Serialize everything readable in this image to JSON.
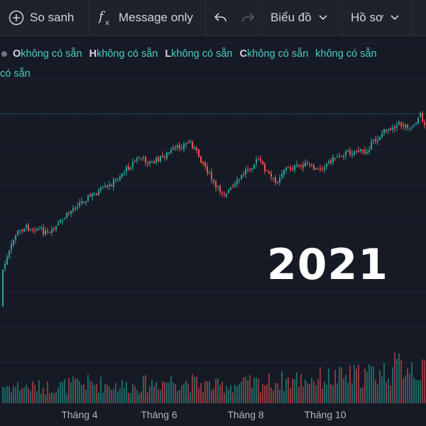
{
  "toolbar": {
    "compare_label": "So sanh",
    "formula_label": "Message only",
    "chart_type_label": "Biểu đồ",
    "profile_label": "Hồ sơ"
  },
  "ohlc": {
    "o_key": "O",
    "o_value": "không có sẵn",
    "h_key": "H",
    "h_value": "không có sẵn",
    "l_key": "L",
    "l_value": "không có sẵn",
    "c_key": "C",
    "c_value": "không có sẵn",
    "change_value": "không có sẵn",
    "wrap_value": "có sẵn"
  },
  "overlay": {
    "year": "2021"
  },
  "x_axis": {
    "labels": [
      "Tháng 4",
      "Tháng 6",
      "Tháng 8",
      "Tháng 10"
    ]
  },
  "colors": {
    "up": "#26a69a",
    "down": "#ef5350",
    "background": "#161a25",
    "price_line": "#26a69a"
  },
  "chart_data": {
    "type": "candlestick",
    "period": "2021",
    "price_anchors": [
      [
        0,
        380
      ],
      [
        6,
        330
      ],
      [
        10,
        320
      ],
      [
        16,
        322
      ],
      [
        22,
        330
      ],
      [
        28,
        310
      ],
      [
        34,
        290
      ],
      [
        40,
        278
      ],
      [
        46,
        268
      ],
      [
        50,
        262
      ],
      [
        58,
        238
      ],
      [
        64,
        222
      ],
      [
        70,
        230
      ],
      [
        78,
        215
      ],
      [
        84,
        205
      ],
      [
        88,
        200
      ],
      [
        92,
        220
      ],
      [
        96,
        240
      ],
      [
        100,
        265
      ],
      [
        104,
        272
      ],
      [
        108,
        265
      ],
      [
        114,
        240
      ],
      [
        120,
        225
      ],
      [
        124,
        242
      ],
      [
        128,
        258
      ],
      [
        132,
        238
      ],
      [
        138,
        235
      ],
      [
        142,
        232
      ],
      [
        148,
        240
      ],
      [
        152,
        230
      ],
      [
        158,
        218
      ],
      [
        166,
        212
      ],
      [
        170,
        215
      ],
      [
        174,
        200
      ],
      [
        180,
        182
      ],
      [
        186,
        175
      ],
      [
        192,
        178
      ],
      [
        196,
        162
      ],
      [
        199,
        182
      ]
    ],
    "volume_anchors": [
      [
        0,
        0.3
      ],
      [
        20,
        0.28
      ],
      [
        40,
        0.35
      ],
      [
        60,
        0.3
      ],
      [
        80,
        0.4
      ],
      [
        100,
        0.3
      ],
      [
        120,
        0.35
      ],
      [
        140,
        0.42
      ],
      [
        160,
        0.45
      ],
      [
        180,
        0.55
      ],
      [
        190,
        0.7
      ],
      [
        199,
        0.5
      ]
    ]
  }
}
